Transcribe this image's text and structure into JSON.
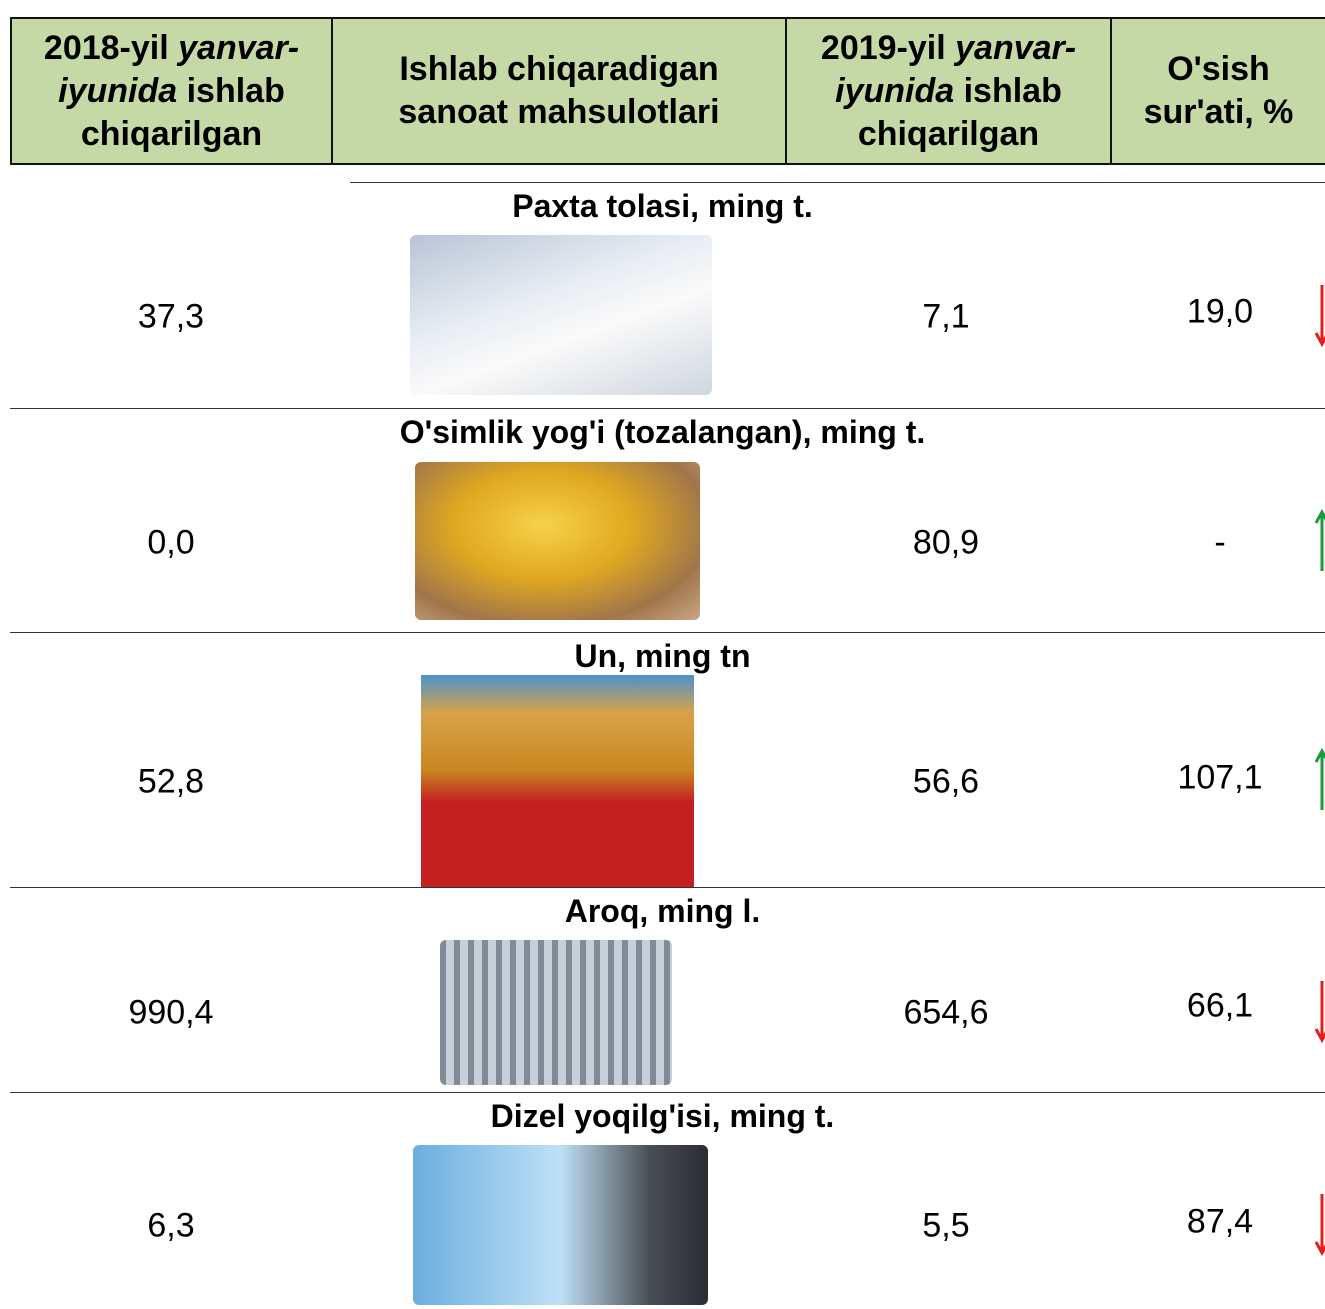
{
  "header": {
    "columns": [
      {
        "before": "2018-yil ",
        "italic": "yanvar-iyunida",
        "after": " ishlab chiqarilgan"
      },
      {
        "before": "Ishlab chiqaradigan sanoat mahsulotlari",
        "italic": "",
        "after": ""
      },
      {
        "before": "2019-yil ",
        "italic": "yanvar-iyunida",
        "after": " ishlab chiqarilgan"
      },
      {
        "before": "O'sish sur'ati, %",
        "italic": "",
        "after": ""
      }
    ]
  },
  "table": {
    "rows": [
      {
        "product": "Paxta tolasi, ming t.",
        "y2018": "37,3",
        "y2019": "7,1",
        "growth": "19,0",
        "trend": "down"
      },
      {
        "product": "O'simlik yog'i (tozalangan), ming t.",
        "y2018": "0,0",
        "y2019": "80,9",
        "growth": "-",
        "trend": "up"
      },
      {
        "product": "Un, ming tn",
        "y2018": "52,8",
        "y2019": "56,6",
        "growth": "107,1",
        "trend": "up"
      },
      {
        "product": "Aroq, ming l.",
        "y2018": "990,4",
        "y2019": "654,6",
        "growth": "66,1",
        "trend": "down"
      },
      {
        "product": "Dizel yoqilg'isi, ming t.",
        "y2018": "6,3",
        "y2019": "5,5",
        "growth": "87,4",
        "trend": "down"
      }
    ]
  }
}
